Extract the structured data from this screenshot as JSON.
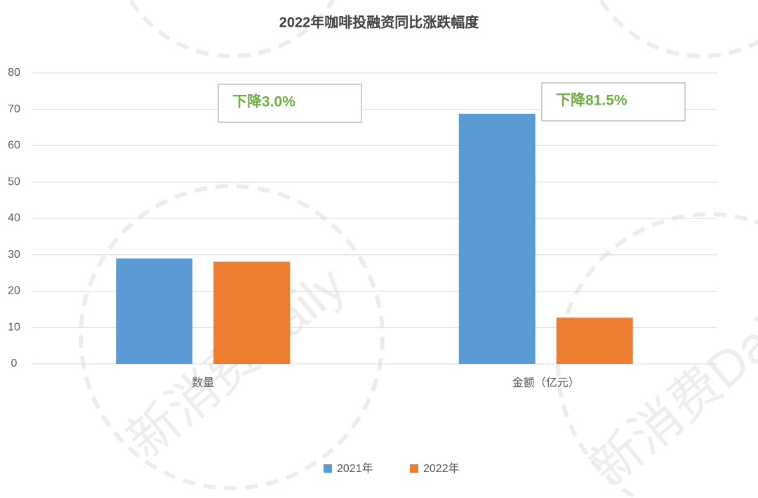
{
  "chart_data": {
    "type": "bar",
    "title": "2022年咖啡投融资同比涨跌幅度",
    "categories": [
      "数量",
      "金额（亿元）"
    ],
    "series": [
      {
        "name": "2021年",
        "color": "#5b9bd5",
        "values": [
          29,
          68.8
        ]
      },
      {
        "name": "2022年",
        "color": "#ed7d31",
        "values": [
          28.1,
          12.7
        ]
      }
    ],
    "ylim": [
      0,
      80
    ],
    "yticks": [
      0,
      10,
      20,
      30,
      40,
      50,
      60,
      70,
      80
    ],
    "grid": true,
    "legend": "bottom",
    "annotations": [
      "下降3.0%",
      "下降81.5%"
    ],
    "watermark": "新消费Daily"
  }
}
